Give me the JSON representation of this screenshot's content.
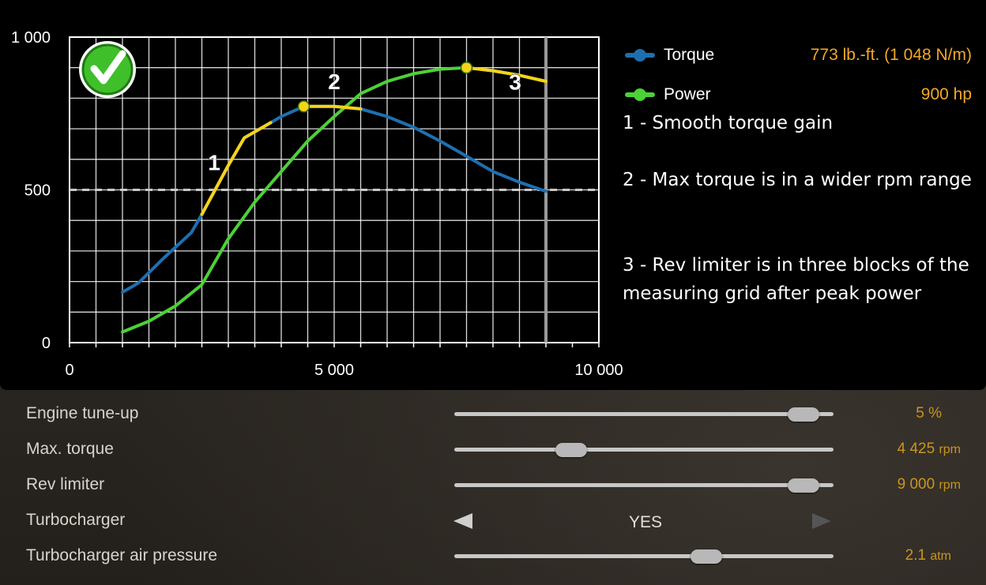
{
  "chart_data": {
    "type": "line",
    "title": "",
    "xlabel": "",
    "ylabel": "",
    "xlim": [
      0,
      10000
    ],
    "ylim": [
      0,
      1000
    ],
    "x_tick_labels": [
      "0",
      "5 000",
      "10 000"
    ],
    "y_tick_labels": [
      "0",
      "500",
      "1 000"
    ],
    "grid": true,
    "legend_position": "right",
    "rev_limit_x": 9000,
    "reference_line_y": 500,
    "series": [
      {
        "name": "Torque",
        "color": "#1e6fb0",
        "x": [
          1000,
          1300,
          1800,
          2300,
          2500,
          3000,
          3300,
          3800,
          4000,
          4425,
          5000,
          5500,
          6000,
          6500,
          7000,
          7500,
          8000,
          8500,
          9000
        ],
        "y": [
          165,
          195,
          280,
          360,
          420,
          580,
          670,
          720,
          740,
          773,
          773,
          765,
          740,
          705,
          660,
          610,
          560,
          525,
          495
        ]
      },
      {
        "name": "Power",
        "color": "#4cd137",
        "x": [
          1000,
          1500,
          2000,
          2500,
          3000,
          3500,
          4000,
          4500,
          5000,
          5500,
          6000,
          6500,
          7000,
          7500,
          8000,
          8500,
          9000
        ],
        "y": [
          35,
          70,
          120,
          190,
          340,
          460,
          560,
          660,
          740,
          815,
          855,
          880,
          895,
          900,
          890,
          875,
          855
        ]
      }
    ],
    "highlights": [
      {
        "label": "1",
        "x": [
          2500,
          3000,
          3300,
          3800
        ],
        "y": [
          420,
          580,
          670,
          720
        ]
      },
      {
        "label": "2",
        "x": [
          4425,
          5000,
          5500
        ],
        "y": [
          773,
          773,
          765
        ]
      },
      {
        "label": "3",
        "x": [
          7500,
          8000,
          8500,
          9000
        ],
        "y": [
          900,
          890,
          875,
          855
        ]
      }
    ],
    "markers": [
      {
        "series": "Torque",
        "x": 4425,
        "y": 773,
        "color": "#f7d31a"
      },
      {
        "series": "Power",
        "x": 7500,
        "y": 900,
        "color": "#f7d31a"
      }
    ]
  },
  "legend": {
    "items": [
      {
        "name": "Torque",
        "value": "773 lb.-ft. (1 048 N/m)",
        "color": "#1e6fb0"
      },
      {
        "name": "Power",
        "value": "900 hp",
        "color": "#4cd137"
      }
    ]
  },
  "notes": {
    "one": "1 - Smooth torque gain",
    "two": "2 - Max torque is in a wider rpm range",
    "three": "3 - Rev limiter is in three blocks of the measuring grid after peak power"
  },
  "colors": {
    "highlight": "#f7d31a",
    "value_orange": "#f2a924",
    "setting_value": "#c9961c",
    "check_green": "#3fbf2a"
  },
  "icons": {
    "badge": "checkmark-badge-icon"
  },
  "settings": {
    "engine_tune": {
      "label": "Engine tune-up",
      "value_text": "5 %",
      "fraction": 0.96
    },
    "max_torque": {
      "label": "Max. torque",
      "value_num": "4 425",
      "value_unit": "rpm",
      "fraction": 0.29
    },
    "rev_limiter": {
      "label": "Rev limiter",
      "value_num": "9 000",
      "value_unit": "rpm",
      "fraction": 0.96
    },
    "turbocharger": {
      "label": "Turbocharger",
      "value": "YES"
    },
    "turbo_pressure": {
      "label": "Turbocharger air pressure",
      "value_num": "2.1",
      "value_unit": "atm",
      "fraction": 0.68
    }
  }
}
